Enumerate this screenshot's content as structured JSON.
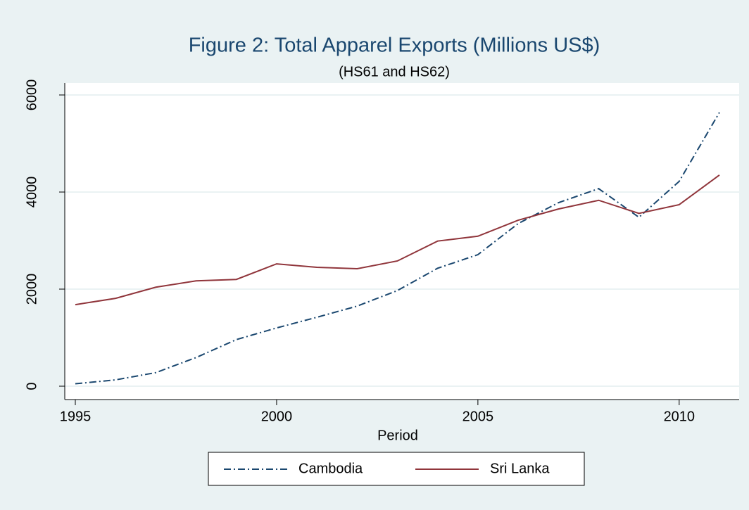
{
  "chart_data": {
    "type": "line",
    "title": "Figure 2: Total Apparel Exports (Millions US$)",
    "subtitle": "(HS61 and HS62)",
    "x_label": "Period",
    "x": [
      1995,
      1996,
      1997,
      1998,
      1999,
      2000,
      2001,
      2002,
      2003,
      2004,
      2005,
      2006,
      2007,
      2008,
      2009,
      2010,
      2011
    ],
    "series": [
      {
        "name": "Cambodia",
        "color": "#1a476f",
        "dash": "dash-dot",
        "values": [
          50,
          130,
          280,
          590,
          960,
          1200,
          1420,
          1650,
          1970,
          2430,
          2710,
          3350,
          3780,
          4070,
          3480,
          4220,
          5640
        ]
      },
      {
        "name": "Sri Lanka",
        "color": "#90353b",
        "dash": "solid",
        "values": [
          1680,
          1810,
          2040,
          2170,
          2200,
          2520,
          2450,
          2420,
          2580,
          2990,
          3090,
          3420,
          3650,
          3830,
          3560,
          3740,
          4350
        ]
      }
    ],
    "xlim": [
      1995,
      2011
    ],
    "xticks": [
      1995,
      2000,
      2005,
      2010
    ],
    "ylim": [
      0,
      6000
    ],
    "yticks": [
      0,
      2000,
      4000,
      6000
    ],
    "grid": true,
    "legend": "bottom"
  }
}
